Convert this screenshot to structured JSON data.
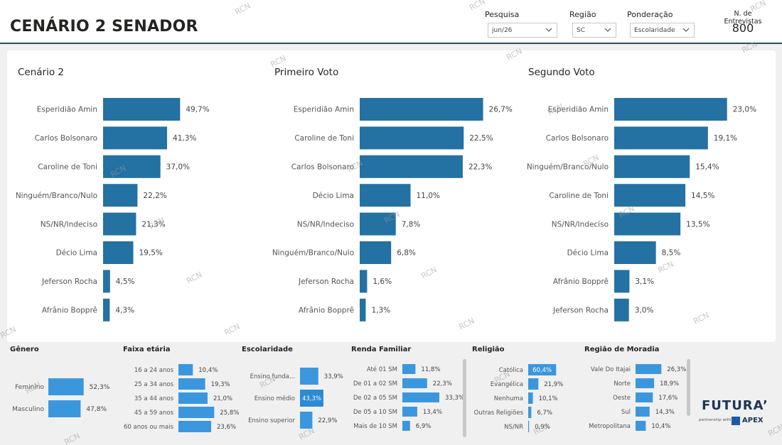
{
  "header": {
    "title": "CENÁRIO 2 SENADOR",
    "filters": [
      {
        "label": "Pesquisa",
        "value": "jun/26"
      },
      {
        "label": "Região",
        "value": "SC"
      },
      {
        "label": "Ponderação",
        "value": "Escolaridade"
      }
    ],
    "entrevistas_label": "N. de Entrevistas",
    "entrevistas_value": "800"
  },
  "watermark": "RCN",
  "colors": {
    "bar": "#2471a3",
    "bar_light": "#3b97dd",
    "bar_highlight": "#2a8ad4"
  },
  "chart_data": [
    {
      "type": "bar",
      "orientation": "horizontal",
      "title": "Cenário 2",
      "categories": [
        "Esperidião Amin",
        "Carlos Bolsonaro",
        "Caroline de Toni",
        "Ninguém/Branco/Nulo",
        "NS/NR/Indeciso",
        "Décio Lima",
        "Jeferson Rocha",
        "Afrânio Bopprê"
      ],
      "values": [
        49.7,
        41.3,
        37.0,
        22.2,
        21.3,
        19.5,
        4.5,
        4.3
      ],
      "labels": [
        "49,7%",
        "41,3%",
        "37,0%",
        "22,2%",
        "21,3%",
        "19,5%",
        "4,5%",
        "4,3%"
      ]
    },
    {
      "type": "bar",
      "orientation": "horizontal",
      "title": "Primeiro Voto",
      "categories": [
        "Esperidião Amin",
        "Caroline de Toni",
        "Carlos Bolsonaro",
        "Décio Lima",
        "NS/NR/Indeciso",
        "Ninguém/Branco/Nulo",
        "Jeferson Rocha",
        "Afrânio Bopprê"
      ],
      "values": [
        26.7,
        22.5,
        22.3,
        11.0,
        7.8,
        6.8,
        1.6,
        1.3
      ],
      "labels": [
        "26,7%",
        "22,5%",
        "22,3%",
        "11,0%",
        "7,8%",
        "6,8%",
        "1,6%",
        "1,3%"
      ]
    },
    {
      "type": "bar",
      "orientation": "horizontal",
      "title": "Segundo Voto",
      "categories": [
        "Esperidião Amin",
        "Carlos Bolsonaro",
        "Ninguém/Branco/Nulo",
        "Caroline de Toni",
        "NS/NR/Indeciso",
        "Décio Lima",
        "Afrânio Bopprê",
        "Jeferson Rocha"
      ],
      "values": [
        23.0,
        19.1,
        15.4,
        14.5,
        13.5,
        8.5,
        3.1,
        3.0
      ],
      "labels": [
        "23,0%",
        "19,1%",
        "15,4%",
        "14,5%",
        "13,5%",
        "8,5%",
        "3,1%",
        "3,0%"
      ]
    },
    {
      "type": "bar",
      "orientation": "horizontal",
      "title": "Gênero",
      "categories": [
        "Feminino",
        "Masculino"
      ],
      "values": [
        52.3,
        47.8
      ],
      "labels": [
        "52,3%",
        "47,8%"
      ]
    },
    {
      "type": "bar",
      "orientation": "horizontal",
      "title": "Faixa etária",
      "categories": [
        "16 a 24 anos",
        "25 a 34 anos",
        "35 a 44 anos",
        "45 a 59 anos",
        "60 anos ou mais"
      ],
      "values": [
        10.4,
        19.3,
        21.0,
        25.8,
        23.6
      ],
      "labels": [
        "10,4%",
        "19,3%",
        "21,0%",
        "25,8%",
        "23,6%"
      ]
    },
    {
      "type": "bar",
      "orientation": "horizontal",
      "title": "Escolaridade",
      "categories": [
        "Ensino funda...",
        "Ensino médio",
        "Ensino superior"
      ],
      "values": [
        33.9,
        43.3,
        22.9
      ],
      "labels": [
        "33,9%",
        "43,3%",
        "22,9%"
      ],
      "highlight": 1
    },
    {
      "type": "bar",
      "orientation": "horizontal",
      "title": "Renda Familiar",
      "categories": [
        "Até 01 SM",
        "De 01 a 02 SM",
        "De 02 a 05 SM",
        "De 05 a 10 SM",
        "Mais de 10 SM"
      ],
      "values": [
        11.8,
        22.3,
        33.3,
        13.4,
        6.9
      ],
      "labels": [
        "11,8%",
        "22,3%",
        "33,3%",
        "13,4%",
        "6,9%"
      ]
    },
    {
      "type": "bar",
      "orientation": "horizontal",
      "title": "Religião",
      "categories": [
        "Católica",
        "Evangélica",
        "Nenhuma",
        "Outras Religiões",
        "NS/NR"
      ],
      "values": [
        60.4,
        21.9,
        10.1,
        6.7,
        0.9
      ],
      "labels": [
        "60,4%",
        "21,9%",
        "10,1%",
        "6,7%",
        "0,9%"
      ],
      "label_inside": 0
    },
    {
      "type": "bar",
      "orientation": "horizontal",
      "title": "Região de Moradia",
      "categories": [
        "Vale Do Itajai",
        "Norte",
        "Oeste",
        "Sul",
        "Metropolitana"
      ],
      "values": [
        26.3,
        18.9,
        17.6,
        14.3,
        10.4
      ],
      "labels": [
        "26,3%",
        "18,9%",
        "17,6%",
        "14,3%",
        "10,4%"
      ]
    }
  ],
  "logo": {
    "brand": "FUTURA",
    "partnership": "partnership with",
    "partner": "APEX"
  }
}
